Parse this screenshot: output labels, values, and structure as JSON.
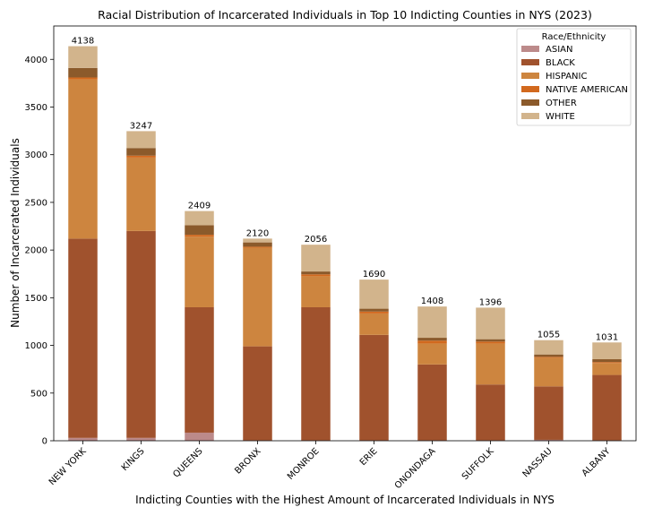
{
  "chart_data": {
    "type": "bar",
    "stacked": true,
    "title": "Racial Distribution of Incarcerated Individuals in Top 10 Indicting Counties in NYS (2023)",
    "xlabel": "Indicting Counties with the Highest Amount of Incarcerated Individuals in NYS",
    "ylabel": "Number of Incarcerated Individuals",
    "ylim": [
      0,
      4350
    ],
    "yticks": [
      0,
      500,
      1000,
      1500,
      2000,
      2500,
      3000,
      3500,
      4000
    ],
    "grid": false,
    "legend_title": "Race/Ethnicity",
    "legend_position": "top-right",
    "categories": [
      "NEW YORK",
      "KINGS",
      "QUEENS",
      "BRONX",
      "MONROE",
      "ERIE",
      "ONONDAGA",
      "SUFFOLK",
      "NASSAU",
      "ALBANY"
    ],
    "totals": [
      4138,
      3247,
      2409,
      2120,
      2056,
      1690,
      1408,
      1396,
      1055,
      1031
    ],
    "series": [
      {
        "name": "ASIAN",
        "color": "#bc8a8a",
        "values": [
          30,
          30,
          85,
          5,
          5,
          5,
          5,
          5,
          10,
          5
        ]
      },
      {
        "name": "BLACK",
        "color": "#a0522d",
        "values": [
          2090,
          2170,
          1315,
          985,
          1395,
          1105,
          795,
          585,
          560,
          685
        ]
      },
      {
        "name": "HISPANIC",
        "color": "#cd853f",
        "values": [
          1670,
          770,
          740,
          1035,
          325,
          225,
          220,
          430,
          300,
          125
        ]
      },
      {
        "name": "NATIVE AMERICAN",
        "color": "#d2691e",
        "values": [
          20,
          20,
          20,
          10,
          20,
          20,
          30,
          20,
          10,
          10
        ]
      },
      {
        "name": "OTHER",
        "color": "#8b5a2b",
        "values": [
          100,
          80,
          100,
          45,
          30,
          30,
          30,
          25,
          25,
          30
        ]
      },
      {
        "name": "WHITE",
        "color": "#d2b48c",
        "values": [
          228,
          177,
          149,
          40,
          281,
          305,
          328,
          331,
          150,
          176
        ]
      }
    ]
  }
}
